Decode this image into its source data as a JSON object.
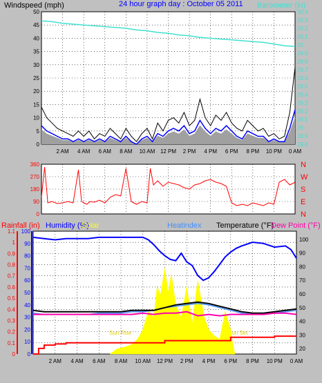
{
  "header": {
    "windspeed_label": "Windspeed (mph)",
    "title": "24 hour graph day : October 05 2011",
    "barometer_label": "Barometer (in)"
  },
  "panel3_header": {
    "rainfall_label": "Rainfall (in)",
    "humidity_label": "Humidity (%)",
    "solar_label": "Solar",
    "heatindex_label": "Heatindex",
    "temperature_label": "Temperature (°F)",
    "dewpoint_label": "Dew Point (°F)"
  },
  "annotations": {
    "sunrise": "Sun Rise",
    "sunset": "Sun Set"
  },
  "colors": {
    "background": "#c0c0c0",
    "plot_bg": "#ffffff",
    "wind_gust": "#000000",
    "wind_avg": "#0000ff",
    "wind_fill": "#a0a0a0",
    "barometer": "#40e0d0",
    "direction": "#ff0000",
    "humidity": "#0000ff",
    "solar": "#ffff00",
    "temperature": "#000000",
    "dewpoint": "#ff00aa",
    "heatindex": "#4090ff",
    "rainfall": "#ff0000",
    "title": "#0000ff",
    "rain_axis": "#ff0000",
    "humidity_axis": "#0000ff"
  },
  "chart_data": [
    {
      "type": "line",
      "panel": "wind-barometer",
      "x_ticks": [
        "2 AM",
        "4 AM",
        "6 AM",
        "8 AM",
        "10 AM",
        "12 PM",
        "2 PM",
        "4 PM",
        "6 PM",
        "8 PM",
        "10 PM",
        "0 AM"
      ],
      "xlim": [
        0,
        24
      ],
      "ylim_left": [
        0,
        50
      ],
      "yticks_left": [
        "0",
        "5",
        "10",
        "15",
        "20",
        "25",
        "30",
        "35",
        "40",
        "45",
        "50"
      ],
      "ylim_right": [
        28.8,
        30.4
      ],
      "yticks_right": [
        "28.8",
        "28.9",
        "29",
        "29.1",
        "29.2",
        "29.3",
        "29.4",
        "29.5",
        "29.6",
        "29.7",
        "29.8",
        "29.9",
        "30",
        "30.1",
        "30.2",
        "30.3",
        "30.4"
      ],
      "series": [
        {
          "key": "barometer",
          "x": [
            0,
            1,
            2,
            3,
            4,
            5,
            6,
            7,
            8,
            9,
            10,
            11,
            12,
            13,
            14,
            15,
            16,
            17,
            18,
            19,
            20,
            21,
            22,
            23,
            24
          ],
          "y": [
            30.29,
            30.28,
            30.26,
            30.25,
            30.24,
            30.23,
            30.22,
            30.21,
            30.2,
            30.18,
            30.17,
            30.15,
            30.14,
            30.12,
            30.11,
            30.09,
            30.08,
            30.07,
            30.06,
            30.05,
            30.04,
            30.03,
            30.01,
            29.99,
            29.98
          ]
        },
        {
          "key": "gust",
          "x": [
            0,
            0.5,
            1,
            1.5,
            2,
            2.5,
            3,
            3.5,
            4,
            4.5,
            5,
            5.5,
            6,
            6.5,
            7,
            7.5,
            8,
            8.5,
            9,
            9.5,
            10,
            10.5,
            11,
            11.5,
            12,
            12.5,
            13,
            13.5,
            14,
            14.5,
            15,
            15.5,
            16,
            16.5,
            17,
            17.5,
            18,
            18.5,
            19,
            19.5,
            20,
            20.5,
            21,
            21.5,
            22,
            22.5,
            23,
            23.5,
            24
          ],
          "y": [
            14,
            10,
            8,
            6,
            5,
            4,
            3,
            5,
            3,
            5,
            2,
            4,
            3,
            6,
            4,
            2,
            6,
            3,
            1,
            4,
            6,
            2,
            8,
            5,
            9,
            10,
            8,
            12,
            7,
            9,
            17,
            10,
            7,
            11,
            9,
            12,
            8,
            6,
            5,
            9,
            7,
            5,
            6,
            3,
            4,
            2,
            3,
            12,
            29
          ]
        },
        {
          "key": "avg",
          "x": [
            0,
            0.5,
            1,
            1.5,
            2,
            2.5,
            3,
            3.5,
            4,
            4.5,
            5,
            5.5,
            6,
            6.5,
            7,
            7.5,
            8,
            8.5,
            9,
            9.5,
            10,
            10.5,
            11,
            11.5,
            12,
            12.5,
            13,
            13.5,
            14,
            14.5,
            15,
            15.5,
            16,
            16.5,
            17,
            17.5,
            18,
            18.5,
            19,
            19.5,
            20,
            20.5,
            21,
            21.5,
            22,
            22.5,
            23,
            23.5,
            24
          ],
          "y": [
            7,
            5,
            4,
            3,
            2,
            2,
            1,
            2,
            1,
            2,
            1,
            2,
            1,
            3,
            2,
            1,
            3,
            1,
            0,
            2,
            3,
            1,
            4,
            3,
            5,
            6,
            5,
            7,
            4,
            5,
            9,
            6,
            4,
            6,
            5,
            7,
            5,
            3,
            2,
            5,
            4,
            3,
            3,
            1,
            2,
            1,
            1,
            6,
            13
          ]
        }
      ]
    },
    {
      "type": "scatter",
      "panel": "wind-direction",
      "xlim": [
        0,
        24
      ],
      "ylim": [
        0,
        360
      ],
      "yticks_left": [
        "0",
        "90",
        "180",
        "270",
        "360"
      ],
      "yticks_right": [
        "N",
        "W",
        "S",
        "E",
        "N"
      ],
      "series": [
        {
          "key": "direction",
          "x": [
            0,
            0.3,
            0.6,
            1,
            1.5,
            2,
            2.5,
            3,
            3.5,
            3.8,
            4,
            4.3,
            4.6,
            5,
            5.5,
            6,
            6.5,
            7,
            7.5,
            8,
            8.5,
            9,
            9.5,
            10,
            10.3,
            10.6,
            11,
            11.5,
            12,
            12.5,
            13,
            13.5,
            14,
            14.5,
            15,
            15.5,
            16,
            16.5,
            17,
            17.5,
            18,
            18.5,
            19,
            19.5,
            20,
            20.5,
            21,
            21.5,
            22,
            22.5,
            23,
            23.5,
            24
          ],
          "y": [
            120,
            340,
            80,
            90,
            75,
            80,
            90,
            80,
            320,
            90,
            80,
            70,
            90,
            85,
            100,
            80,
            120,
            140,
            130,
            330,
            90,
            70,
            90,
            80,
            330,
            210,
            240,
            200,
            230,
            220,
            210,
            190,
            180,
            210,
            220,
            240,
            250,
            230,
            220,
            200,
            80,
            60,
            70,
            60,
            80,
            70,
            60,
            80,
            70,
            230,
            250,
            210,
            230
          ]
        }
      ]
    },
    {
      "type": "line",
      "panel": "temp-humidity",
      "xlim": [
        0,
        24
      ],
      "ylim_rain": [
        0,
        1.1
      ],
      "yticks_rain": [
        "0",
        "0.1",
        "0.2",
        "0.3",
        "0.4",
        "0.5",
        "0.6",
        "0.7",
        "0.8",
        "0.9",
        "1",
        "1.1"
      ],
      "ylim_hum": [
        0,
        100
      ],
      "yticks_hum": [
        "0",
        "10",
        "20",
        "30",
        "40",
        "50",
        "60",
        "70",
        "80",
        "90",
        "100"
      ],
      "ylim_temp": [
        16,
        106
      ],
      "yticks_temp": [
        "20",
        "30",
        "40",
        "50",
        "60",
        "70",
        "80",
        "90",
        "100"
      ],
      "series": [
        {
          "key": "humidity",
          "x": [
            0,
            1,
            2,
            3,
            4,
            5,
            6,
            7,
            8,
            9,
            10,
            10.5,
            11,
            11.5,
            12,
            12.5,
            13,
            13.5,
            14,
            14.5,
            15,
            15.5,
            16,
            16.5,
            17,
            17.5,
            18,
            18.5,
            19,
            20,
            21,
            22,
            23,
            23.5,
            24
          ],
          "y": [
            95,
            94,
            93,
            94,
            94,
            94,
            95,
            95,
            95,
            95,
            95,
            93,
            89,
            84,
            80,
            77,
            76,
            82,
            75,
            72,
            64,
            60,
            62,
            67,
            73,
            79,
            83,
            86,
            88,
            91,
            90,
            87,
            88,
            85,
            78
          ]
        },
        {
          "key": "temperature",
          "x": [
            0,
            1,
            2,
            3,
            4,
            5,
            6,
            7,
            8,
            9,
            10,
            11,
            12,
            13,
            14,
            15,
            16,
            17,
            18,
            19,
            20,
            21,
            22,
            23,
            24
          ],
          "y": [
            48,
            47,
            47,
            47,
            47,
            47,
            47,
            47,
            47,
            48,
            48,
            48,
            50,
            52,
            53,
            54,
            53,
            51,
            49,
            47,
            46,
            46,
            47,
            48,
            49
          ]
        },
        {
          "key": "heatindex",
          "x": [
            0,
            1,
            2,
            3,
            4,
            5,
            6,
            7,
            8,
            9,
            10,
            11,
            12,
            13,
            14,
            15,
            16,
            17,
            18,
            19,
            20,
            21,
            22,
            23,
            24
          ],
          "y": [
            46,
            45,
            45,
            45,
            45,
            45,
            46,
            46,
            46,
            47,
            47,
            48,
            50,
            51,
            52,
            53,
            52,
            50,
            48,
            46,
            45,
            45,
            46,
            47,
            48
          ]
        },
        {
          "key": "dewpoint",
          "x": [
            0,
            1,
            2,
            3,
            4,
            5,
            6,
            7,
            8,
            9,
            10,
            11,
            12,
            13,
            14,
            15,
            16,
            17,
            18,
            19,
            20,
            21,
            22,
            23,
            24
          ],
          "y": [
            45,
            45,
            45,
            45,
            45,
            45,
            45,
            45,
            45,
            45,
            46,
            45,
            46,
            46,
            47,
            44,
            45,
            44,
            45,
            45,
            45,
            45,
            46,
            46,
            45
          ]
        },
        {
          "key": "solar",
          "x": [
            7.0,
            7.3,
            7.6,
            8,
            8.5,
            9,
            9.5,
            10,
            10.5,
            11,
            11.3,
            11.6,
            12,
            12.3,
            12.6,
            13,
            13.5,
            14,
            14.5,
            15,
            15.3,
            15.6,
            16,
            16.5,
            17,
            17.5,
            18,
            18.2,
            18.4
          ],
          "y": [
            0,
            2,
            4,
            5,
            6,
            8,
            12,
            20,
            35,
            30,
            55,
            48,
            70,
            50,
            65,
            40,
            30,
            55,
            25,
            60,
            45,
            30,
            20,
            15,
            12,
            35,
            20,
            8,
            0
          ]
        },
        {
          "key": "rainfall",
          "x": [
            0,
            0.5,
            1,
            2,
            3,
            4,
            5,
            6,
            7,
            7.5,
            8,
            9,
            10,
            11,
            12,
            13,
            14,
            15,
            16,
            17,
            18,
            19,
            20,
            21,
            22,
            23,
            24
          ],
          "y": [
            0,
            0.05,
            0.08,
            0.09,
            0.1,
            0.1,
            0.1,
            0.1,
            0.1,
            0.1,
            0.1,
            0.1,
            0.1,
            0.1,
            0.12,
            0.12,
            0.12,
            0.12,
            0.12,
            0.12,
            0.15,
            0.15,
            0.15,
            0.15,
            0.16,
            0.16,
            0.16
          ]
        }
      ]
    }
  ]
}
